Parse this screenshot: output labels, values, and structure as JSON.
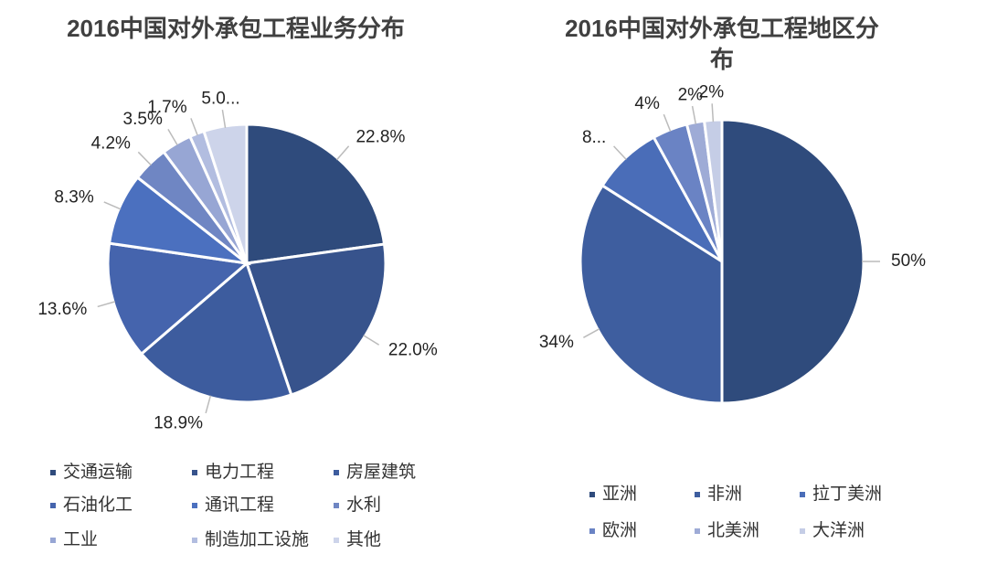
{
  "chart_data": [
    {
      "type": "pie",
      "title": "2016中国对外承包工程业务分布",
      "categories": [
        "交通运输",
        "电力工程",
        "房屋建筑",
        "石油化工",
        "通讯工程",
        "水利",
        "工业",
        "制造加工设施",
        "其他"
      ],
      "values": [
        22.8,
        22.0,
        18.9,
        13.6,
        8.3,
        4.2,
        3.5,
        1.7,
        5.0
      ],
      "value_labels": [
        "22.8%",
        "22.0%",
        "18.9%",
        "13.6%",
        "8.3%",
        "4.2%",
        "3.5%",
        "1.7%",
        "5.0..."
      ],
      "colors": [
        "#2f4b7c",
        "#37538c",
        "#3d5c9e",
        "#4564ad",
        "#4b70bf",
        "#6f86c3",
        "#97a6d4",
        "#b2bde0",
        "#cdd4ea"
      ]
    },
    {
      "type": "pie",
      "title": "2016中国对外承包工程地区分布",
      "categories": [
        "亚洲",
        "非洲",
        "拉丁美洲",
        "欧洲",
        "北美洲",
        "大洋洲"
      ],
      "values": [
        50,
        34,
        8,
        4,
        2,
        2
      ],
      "value_labels": [
        "50%",
        "34%",
        "8...",
        "4%",
        "2%",
        "2%"
      ],
      "colors": [
        "#2f4b7c",
        "#3e5e9f",
        "#4a6db8",
        "#6a83c4",
        "#9eabd6",
        "#c5cde6"
      ]
    }
  ]
}
